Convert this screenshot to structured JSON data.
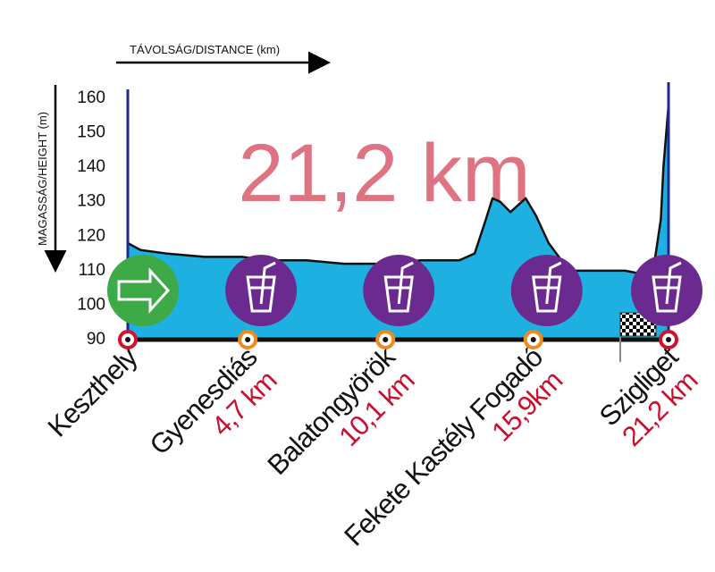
{
  "chart_data": {
    "type": "area",
    "title": "21,2 km",
    "xlabel": "TÁVOLSÁG/DISTANCE (km)",
    "ylabel": "MAGASSÁG/HEIGHT (m)",
    "x": [
      0,
      0.5,
      1.5,
      3,
      4.5,
      5.5,
      7,
      8.5,
      10,
      11.5,
      13,
      13.6,
      14,
      14.3,
      14.6,
      15,
      15.6,
      16,
      16.5,
      17,
      17.5,
      18.5,
      19.5,
      20.2,
      20.6,
      20.9,
      21.0,
      21.2
    ],
    "series": [
      {
        "color": "#1fb0e2",
        "values": [
          118,
          116,
          115,
          114,
          114,
          113,
          113,
          112,
          112,
          113,
          113,
          115,
          124,
          131,
          130,
          127,
          131,
          126,
          118,
          113,
          110,
          110,
          110,
          109,
          110,
          125,
          140,
          158
        ]
      }
    ],
    "xlim": [
      0,
      21.2
    ],
    "ylim": [
      90,
      160
    ],
    "yticks": [
      90,
      100,
      110,
      120,
      130,
      140,
      150,
      160
    ],
    "stations": [
      {
        "name": "Keszthely",
        "x": 0
      },
      {
        "name": "Gyenesdiás",
        "x": 4.7,
        "label": "4,7 km"
      },
      {
        "name": "Balatongyörök",
        "x": 10.1,
        "label": "10,1 km"
      },
      {
        "name": "Fekete Kastély Fogadó",
        "x": 15.9,
        "label": "15,9km"
      },
      {
        "name": "Szigliget",
        "x": 21.2,
        "label": "21,2 km"
      }
    ]
  }
}
